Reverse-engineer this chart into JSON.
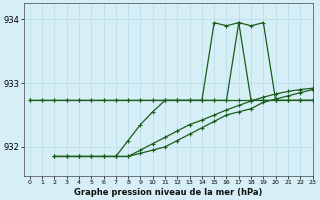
{
  "title": "Graphe pression niveau de la mer (hPa)",
  "bg_color": "#d6eff7",
  "grid_color": "#b8dde8",
  "line_color": "#1a5c1a",
  "xlim": [
    -0.5,
    23
  ],
  "ylim": [
    931.55,
    934.25
  ],
  "yticks": [
    932,
    933,
    934
  ],
  "xticks": [
    0,
    1,
    2,
    3,
    4,
    5,
    6,
    7,
    8,
    9,
    10,
    11,
    12,
    13,
    14,
    15,
    16,
    17,
    18,
    19,
    20,
    21,
    22,
    23
  ],
  "s1_x": [
    0,
    1,
    2,
    3,
    4,
    5,
    6,
    7,
    8,
    9,
    10,
    11,
    12,
    13,
    14,
    15,
    16,
    17,
    18,
    19,
    20,
    21,
    22,
    23
  ],
  "s1_y": [
    932.73,
    932.73,
    932.73,
    932.73,
    932.73,
    932.73,
    932.73,
    932.73,
    932.73,
    932.73,
    932.73,
    932.73,
    932.73,
    932.73,
    932.73,
    932.73,
    932.73,
    932.73,
    932.73,
    932.73,
    932.73,
    932.73,
    932.73,
    932.73
  ],
  "s2_x": [
    0,
    1,
    2,
    3,
    4,
    5,
    6,
    7,
    8,
    9,
    10,
    11,
    12,
    13,
    14,
    15,
    16,
    17,
    18,
    19,
    20,
    21,
    22,
    23
  ],
  "s2_y": [
    932.73,
    932.73,
    932.73,
    932.73,
    932.73,
    932.73,
    932.73,
    932.73,
    932.73,
    932.73,
    932.73,
    932.73,
    932.73,
    932.73,
    932.73,
    933.95,
    933.9,
    933.95,
    932.73,
    932.73,
    932.73,
    932.73,
    932.73,
    932.73
  ],
  "s3_x": [
    2,
    3,
    4,
    5,
    6,
    7,
    8,
    9,
    10,
    11,
    12,
    13,
    14,
    15,
    16,
    17,
    18,
    19,
    20,
    21,
    22,
    23
  ],
  "s3_y": [
    931.85,
    931.85,
    931.85,
    931.85,
    931.85,
    931.85,
    931.85,
    931.9,
    931.95,
    932.0,
    932.1,
    932.2,
    932.3,
    932.4,
    932.5,
    932.55,
    932.6,
    932.7,
    932.75,
    932.8,
    932.85,
    932.9
  ],
  "s4_x": [
    2,
    3,
    4,
    5,
    6,
    7,
    8,
    9,
    10,
    11,
    12,
    13,
    14,
    15,
    16,
    17,
    18,
    19,
    20,
    21,
    22,
    23
  ],
  "s4_y": [
    931.85,
    931.85,
    931.85,
    931.85,
    931.85,
    931.85,
    931.85,
    931.95,
    932.05,
    932.15,
    932.25,
    932.35,
    932.42,
    932.5,
    932.58,
    932.65,
    932.72,
    932.78,
    932.83,
    932.87,
    932.9,
    932.92
  ],
  "s5_x": [
    2,
    3,
    4,
    5,
    6,
    7,
    8,
    9,
    10,
    11,
    12,
    13,
    14,
    15,
    16,
    17,
    18,
    19,
    20,
    21,
    22,
    23
  ],
  "s5_y": [
    931.85,
    931.85,
    931.85,
    931.85,
    931.85,
    931.85,
    932.1,
    932.35,
    932.55,
    932.73,
    932.73,
    932.73,
    932.73,
    932.73,
    932.73,
    933.95,
    933.9,
    933.95,
    932.73,
    932.73,
    932.73,
    932.73
  ]
}
